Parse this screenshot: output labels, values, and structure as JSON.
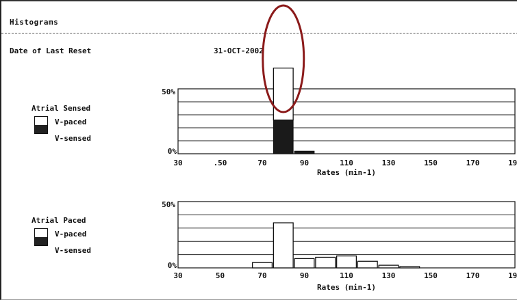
{
  "header": {
    "title": "Histograms",
    "reset_label": "Date of Last Reset",
    "reset_date": "31-OCT-2002"
  },
  "colors": {
    "paced_fill": "#ffffff",
    "sensed_fill": "#1a1a1a",
    "highlight_ellipse": "#8b1a1a"
  },
  "chart_data": [
    {
      "type": "bar",
      "stacked": true,
      "legend_title": "Atrial Sensed",
      "xlabel": "Rates (min-1)",
      "x_ticks": [
        "30",
        ".50",
        "70",
        "90",
        "110",
        "130",
        "150",
        "170",
        "190"
      ],
      "y_ticks": [
        "50%",
        "0%"
      ],
      "x_range": [
        30,
        190
      ],
      "ylim": [
        0,
        50
      ],
      "bin_width": 10,
      "series": [
        {
          "name": "V-paced",
          "color": "#ffffff",
          "points": [
            {
              "x": 80,
              "y": 40
            }
          ]
        },
        {
          "name": "V-sensed",
          "color": "#1a1a1a",
          "points": [
            {
              "x": 80,
              "y": 26
            },
            {
              "x": 90,
              "y": 2
            }
          ]
        }
      ],
      "annotation": "circled-80-bin-overflow"
    },
    {
      "type": "bar",
      "stacked": true,
      "legend_title": "Atrial Paced",
      "xlabel": "Rates (min-1)",
      "x_ticks": [
        "30",
        "50",
        "70",
        "90",
        "110",
        "130",
        "150",
        "170",
        "190"
      ],
      "y_ticks": [
        "50%",
        "0%"
      ],
      "x_range": [
        30,
        190
      ],
      "ylim": [
        0,
        50
      ],
      "bin_width": 10,
      "series": [
        {
          "name": "V-paced",
          "color": "#ffffff",
          "points": [
            {
              "x": 70,
              "y": 4
            },
            {
              "x": 80,
              "y": 34
            },
            {
              "x": 90,
              "y": 7
            },
            {
              "x": 100,
              "y": 8
            },
            {
              "x": 110,
              "y": 9
            },
            {
              "x": 120,
              "y": 5
            },
            {
              "x": 130,
              "y": 2
            },
            {
              "x": 140,
              "y": 1
            }
          ]
        },
        {
          "name": "V-sensed",
          "color": "#1a1a1a",
          "points": []
        }
      ]
    }
  ]
}
